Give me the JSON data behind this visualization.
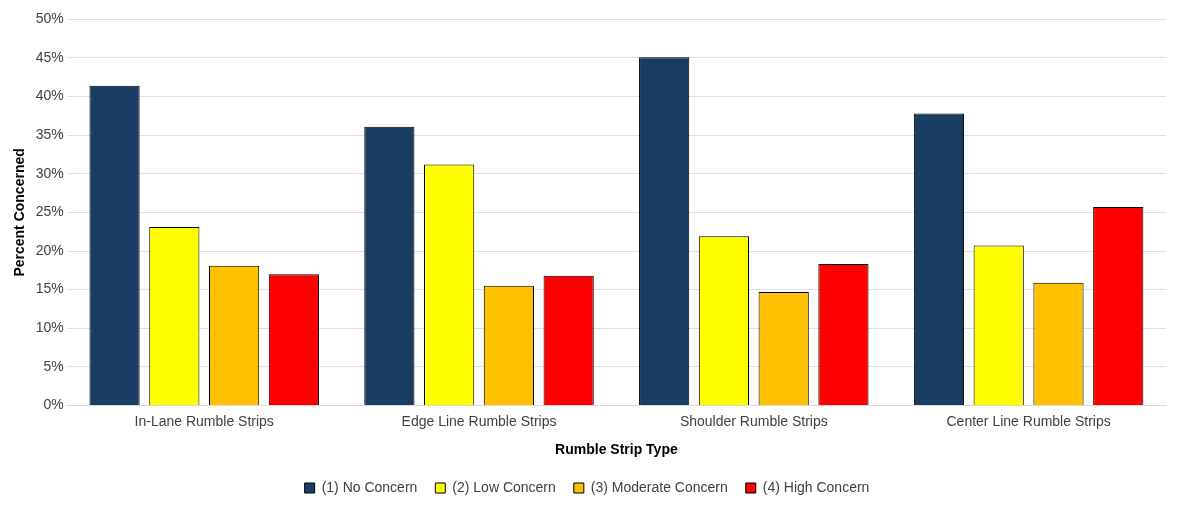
{
  "chart_data": {
    "type": "bar",
    "xlabel": "Rumble Strip Type",
    "ylabel": "Percent Concerned",
    "categories": [
      "In-Lane Rumble Strips",
      "Edge Line Rumble Strips",
      "Shoulder Rumble Strips",
      "Center Line Rumble Strips"
    ],
    "series": [
      {
        "name": "(1) No Concern",
        "color": "#1a3c63",
        "values": [
          41.4,
          36.1,
          45.1,
          37.8
        ]
      },
      {
        "name": "(2) Low Concern",
        "color": "#ffff00",
        "values": [
          23.1,
          31.2,
          21.9,
          20.7
        ]
      },
      {
        "name": "(3) Moderate Concern",
        "color": "#ffc000",
        "values": [
          18.1,
          15.5,
          14.7,
          15.9
        ]
      },
      {
        "name": "(4) High Concern",
        "color": "#ff0000",
        "values": [
          17.0,
          16.8,
          18.3,
          25.7
        ]
      }
    ],
    "ylim": [
      0,
      50
    ],
    "yticks": [
      {
        "value": 0,
        "label": "0%"
      },
      {
        "value": 5,
        "label": "5%"
      },
      {
        "value": 10,
        "label": "10%"
      },
      {
        "value": 15,
        "label": "15%"
      },
      {
        "value": 20,
        "label": "20%"
      },
      {
        "value": 25,
        "label": "25%"
      },
      {
        "value": 30,
        "label": "30%"
      },
      {
        "value": 35,
        "label": "35%"
      },
      {
        "value": 40,
        "label": "40%"
      },
      {
        "value": 45,
        "label": "45%"
      },
      {
        "value": 50,
        "label": "50%"
      }
    ],
    "grid": "y",
    "legend": "bottom"
  }
}
